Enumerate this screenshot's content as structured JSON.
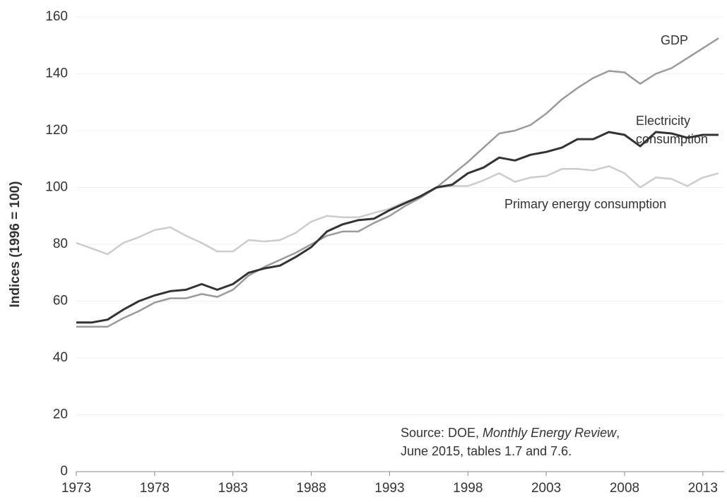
{
  "chart_data": {
    "type": "line",
    "y_label": "Indices (1996 = 100)",
    "source": [
      "Source: DOE, ",
      "Monthly Energy Review",
      ",",
      "June 2015, tables 1.7 and 7.6."
    ],
    "x": [
      1973,
      1974,
      1975,
      1976,
      1977,
      1978,
      1979,
      1980,
      1981,
      1982,
      1983,
      1984,
      1985,
      1986,
      1987,
      1988,
      1989,
      1990,
      1991,
      1992,
      1993,
      1994,
      1995,
      1996,
      1997,
      1998,
      1999,
      2000,
      2001,
      2002,
      2003,
      2004,
      2005,
      2006,
      2007,
      2008,
      2009,
      2010,
      2011,
      2012,
      2013,
      2014
    ],
    "series": [
      {
        "name": "GDP",
        "color": "#9a9a9a",
        "values": [
          51,
          51,
          51,
          54,
          56.5,
          59.5,
          61,
          61,
          62.5,
          61.5,
          64,
          69,
          72,
          74.5,
          77,
          80,
          83,
          84.5,
          84.5,
          87.5,
          90,
          93.5,
          96.5,
          100,
          104.5,
          109,
          114,
          119,
          120,
          122,
          126,
          131,
          135,
          138.5,
          141,
          140.5,
          136.5,
          140,
          142,
          145.5,
          149,
          152.5
        ]
      },
      {
        "name": "Electricity consumption",
        "color": "#333333",
        "values": [
          52.5,
          52.5,
          53.5,
          57,
          60,
          62,
          63.5,
          64,
          66,
          64,
          66,
          70,
          71.5,
          72.5,
          75.5,
          79,
          84.5,
          87,
          88.5,
          89,
          92,
          94.5,
          97,
          100,
          101,
          105,
          107,
          110.5,
          109.5,
          111.5,
          112.5,
          114,
          117,
          117,
          119.5,
          118.5,
          114.5,
          119.5,
          119,
          117.5,
          118.5,
          118.5
        ]
      },
      {
        "name": "Primary energy consumption",
        "color": "#cccccc",
        "values": [
          80.5,
          78.5,
          76.5,
          80.5,
          82.5,
          85,
          86,
          83,
          80.5,
          77.5,
          77.5,
          81.5,
          81,
          81.5,
          84,
          88,
          90,
          89.5,
          89.5,
          91,
          92.5,
          95,
          96.5,
          100,
          100.5,
          100.5,
          102.5,
          105,
          102,
          103.5,
          104,
          106.5,
          106.5,
          106,
          107.5,
          105,
          100,
          103.5,
          103,
          100.5,
          103.5,
          105
        ]
      }
    ],
    "xlim": [
      1973,
      2014
    ],
    "xticks": [
      1973,
      1978,
      1983,
      1988,
      1993,
      1998,
      2003,
      2008,
      2013
    ],
    "ylim": [
      0,
      160
    ],
    "yticks": [
      0,
      20,
      40,
      60,
      80,
      100,
      120,
      140,
      160
    ],
    "grid": true
  }
}
